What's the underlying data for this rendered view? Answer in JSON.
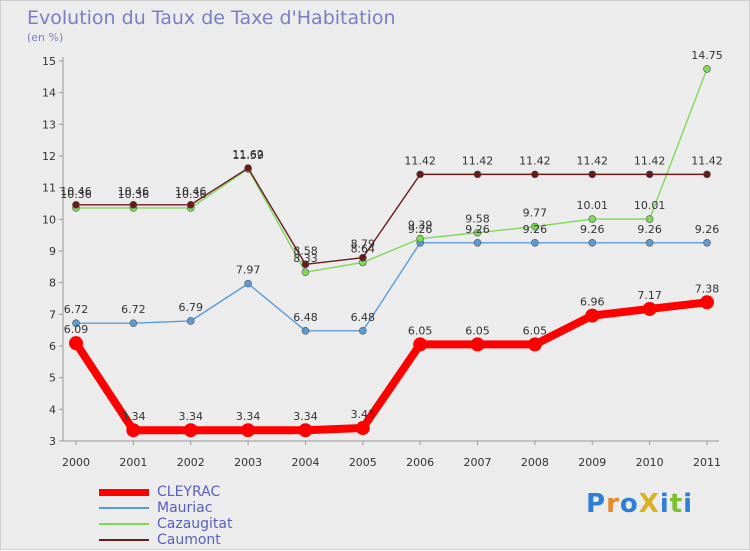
{
  "title": "Evolution du Taux de Taxe d'Habitation",
  "unit": "(en %)",
  "logo": "ProXiti",
  "chart_data": {
    "type": "line",
    "x": [
      "2000",
      "2001",
      "2002",
      "2003",
      "2004",
      "2005",
      "2006",
      "2007",
      "2008",
      "2009",
      "2010",
      "2011"
    ],
    "ylim": [
      3,
      15
    ],
    "yticks": [
      3,
      4,
      5,
      6,
      7,
      8,
      9,
      10,
      11,
      12,
      13,
      14,
      15
    ],
    "grid": false,
    "legend_position": "bottom-left",
    "series": [
      {
        "name": "CLEYRAC",
        "color": "#ff0000",
        "values": [
          6.09,
          3.34,
          3.34,
          3.34,
          3.34,
          3.41,
          6.05,
          6.05,
          6.05,
          6.96,
          7.17,
          7.38
        ],
        "labels": [
          "6.09",
          "3.34",
          "3.34",
          "3.34",
          "3.34",
          "3.41",
          "6.05",
          "6.05",
          "6.05",
          "6.96",
          "7.17",
          "7.38"
        ]
      },
      {
        "name": "Mauriac",
        "color": "#5b9bd5",
        "values": [
          6.72,
          6.72,
          6.79,
          7.97,
          6.48,
          6.48,
          9.26,
          9.26,
          9.26,
          9.26,
          9.26,
          9.26
        ],
        "labels": [
          "6.72",
          "6.72",
          "6.79",
          "7.97",
          "6.48",
          "6.48",
          "9.26",
          "9.26",
          "9.26",
          "9.26",
          "9.26",
          "9.26"
        ]
      },
      {
        "name": "Cazaugitat",
        "color": "#7ed957",
        "values": [
          10.36,
          10.36,
          10.36,
          11.59,
          8.33,
          8.64,
          9.39,
          9.58,
          9.77,
          10.01,
          10.01,
          14.75
        ],
        "labels": [
          "10.36",
          "10.36",
          "10.36",
          "11.59",
          "8.33",
          "8.64",
          "9.39",
          "9.58",
          "9.77",
          "10.01",
          "10.01",
          "14.75"
        ]
      },
      {
        "name": "Caumont",
        "color": "#6b1a1a",
        "values": [
          10.46,
          10.46,
          10.46,
          11.62,
          8.58,
          8.79,
          11.42,
          11.42,
          11.42,
          11.42,
          11.42,
          11.42
        ],
        "labels": [
          "10.46",
          "10.46",
          "10.46",
          "11.62",
          "8.58",
          "8.79",
          "11.42",
          "11.42",
          "11.42",
          "11.42",
          "11.42",
          "11.42"
        ]
      }
    ]
  }
}
